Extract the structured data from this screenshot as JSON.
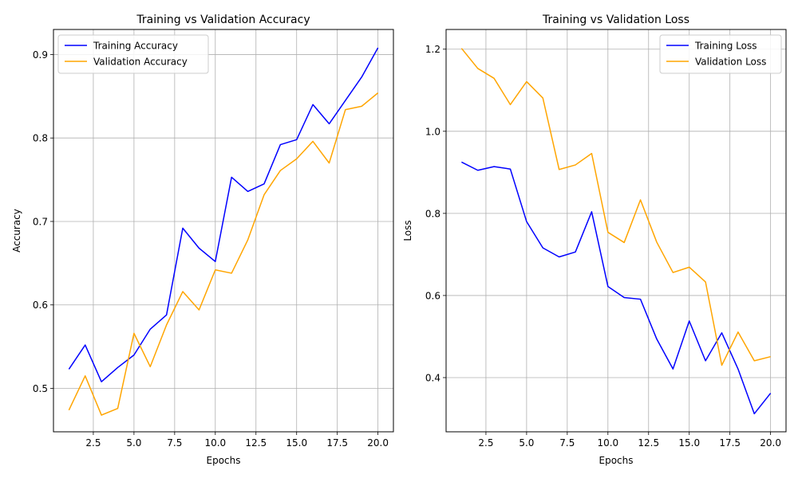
{
  "chart_data": [
    {
      "type": "line",
      "title": "Training vs Validation Accuracy",
      "xlabel": "Epochs",
      "ylabel": "Accuracy",
      "xlim": [
        0.05,
        20.95
      ],
      "ylim": [
        0.448,
        0.93
      ],
      "xticks": [
        2.5,
        5.0,
        7.5,
        10.0,
        12.5,
        15.0,
        17.5,
        20.0
      ],
      "yticks": [
        0.5,
        0.6,
        0.7,
        0.8,
        0.9
      ],
      "x": [
        1,
        2,
        3,
        4,
        5,
        6,
        7,
        8,
        9,
        10,
        11,
        12,
        13,
        14,
        15,
        16,
        17,
        18,
        19,
        20
      ],
      "grid": true,
      "legend_position": "upper left",
      "series": [
        {
          "name": "Training Accuracy",
          "color": "#0000ff",
          "values": [
            0.523,
            0.552,
            0.508,
            0.525,
            0.54,
            0.571,
            0.588,
            0.692,
            0.668,
            0.652,
            0.753,
            0.736,
            0.745,
            0.792,
            0.798,
            0.84,
            0.817,
            0.845,
            0.873,
            0.908
          ]
        },
        {
          "name": "Validation Accuracy",
          "color": "#ffa500",
          "values": [
            0.474,
            0.515,
            0.468,
            0.476,
            0.566,
            0.526,
            0.576,
            0.616,
            0.594,
            0.642,
            0.638,
            0.678,
            0.732,
            0.761,
            0.775,
            0.796,
            0.77,
            0.834,
            0.838,
            0.854
          ]
        }
      ]
    },
    {
      "type": "line",
      "title": "Training vs Validation Loss",
      "xlabel": "Epochs",
      "ylabel": "Loss",
      "xlim": [
        0.05,
        20.95
      ],
      "ylim": [
        0.268,
        1.248
      ],
      "xticks": [
        2.5,
        5.0,
        7.5,
        10.0,
        12.5,
        15.0,
        17.5,
        20.0
      ],
      "yticks": [
        0.4,
        0.6,
        0.8,
        1.0,
        1.2
      ],
      "x": [
        1,
        2,
        3,
        4,
        5,
        6,
        7,
        8,
        9,
        10,
        11,
        12,
        13,
        14,
        15,
        16,
        17,
        18,
        19,
        20
      ],
      "grid": true,
      "legend_position": "upper right",
      "series": [
        {
          "name": "Training Loss",
          "color": "#0000ff",
          "values": [
            0.925,
            0.905,
            0.914,
            0.908,
            0.78,
            0.716,
            0.694,
            0.706,
            0.804,
            0.622,
            0.595,
            0.591,
            0.494,
            0.421,
            0.538,
            0.441,
            0.509,
            0.421,
            0.312,
            0.362
          ]
        },
        {
          "name": "Validation Loss",
          "color": "#ffa500",
          "values": [
            1.202,
            1.153,
            1.129,
            1.065,
            1.121,
            1.081,
            0.907,
            0.918,
            0.946,
            0.754,
            0.729,
            0.833,
            0.73,
            0.656,
            0.669,
            0.633,
            0.43,
            0.511,
            0.441,
            0.451
          ]
        }
      ]
    }
  ]
}
